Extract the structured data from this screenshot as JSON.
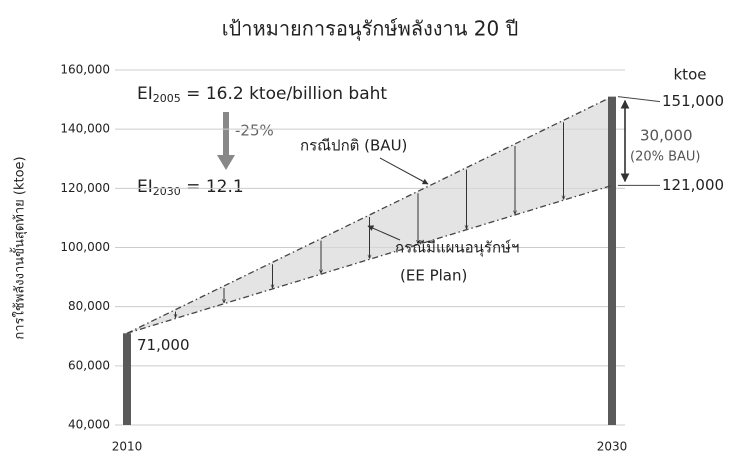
{
  "chart_data": {
    "type": "line",
    "title": "เป้าหมายการอนุรักษ์พลังงาน 20 ปี",
    "y_label": "การใช้พลังงานขั้นสุดท้าย (ktoe)",
    "unit": "ktoe",
    "x": [
      2010,
      2030
    ],
    "xlim": [
      2010,
      2030
    ],
    "xticks": [
      2010,
      2030
    ],
    "ylim": [
      40000,
      160000
    ],
    "yticks": [
      {
        "value": 40000,
        "label": "40,000"
      },
      {
        "value": 60000,
        "label": "60,000"
      },
      {
        "value": 80000,
        "label": "80,000"
      },
      {
        "value": 100000,
        "label": "100,000"
      },
      {
        "value": 120000,
        "label": "120,000"
      },
      {
        "value": 140000,
        "label": "140,000"
      },
      {
        "value": 160000,
        "label": "160,000"
      }
    ],
    "grid": true,
    "bars": {
      "color": "#5a5a5a",
      "values": [
        71000,
        151000
      ],
      "value_labels": [
        "71,000",
        "151,000"
      ]
    },
    "series": [
      {
        "name": "กรณีปกติ (BAU)",
        "color": "#444444",
        "values": [
          71000,
          151000
        ]
      },
      {
        "name": "กรณีมีแผนอนุรักษ์ฯ",
        "color": "#444444",
        "values": [
          71000,
          121000
        ],
        "value_labels": [
          null,
          "121,000"
        ]
      }
    ],
    "ee_note": "(EE Plan)",
    "ei_2005": {
      "prefix": "EI",
      "sub": "2005",
      "suffix": " = 16.2 ktoe/billion baht"
    },
    "ei_2030": {
      "prefix": "EI",
      "sub": "2030",
      "suffix": " = 12.1"
    },
    "reduction": "-25%",
    "savings": {
      "value": 30000,
      "label": "30,000"
    },
    "savings_note": "(20% BAU)"
  }
}
